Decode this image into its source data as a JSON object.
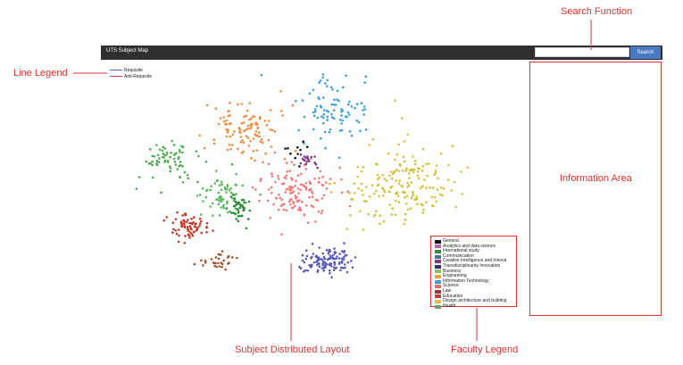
{
  "callouts": {
    "search": "Search Function",
    "line_legend": "Line Legend",
    "info_area": "Information Area",
    "layout": "Subject Distributed Layout",
    "faculty_legend": "Faculty Legend"
  },
  "navbar": {
    "title": "UTS Subject Map",
    "search_value": "",
    "search_button": "Search"
  },
  "line_legend": [
    {
      "label": "Requisite",
      "color": "#4a66b5"
    },
    {
      "label": "Anti-Requisite",
      "color": "#d63a3a"
    }
  ],
  "faculty_legend": [
    {
      "label": "General",
      "color": "#111111"
    },
    {
      "label": "Analytics and data science",
      "color": "#c05ab0"
    },
    {
      "label": "International study",
      "color": "#2e8b3a"
    },
    {
      "label": "Communication",
      "color": "#3b7a8c"
    },
    {
      "label": "Creative Intelligence and Innova",
      "color": "#7a3b8c"
    },
    {
      "label": "Transdisciplinarity Innovation",
      "color": "#3a2c6b"
    },
    {
      "label": "Business",
      "color": "#8fbf5a"
    },
    {
      "label": "Engineering",
      "color": "#e8a43a"
    },
    {
      "label": "Information Technology",
      "color": "#3a9fd8"
    },
    {
      "label": "Science",
      "color": "#e46a6a"
    },
    {
      "label": "Law",
      "color": "#9b3a2c"
    },
    {
      "label": "Education",
      "color": "#c23a3a"
    },
    {
      "label": "Design architecture and building",
      "color": "#d8c23a"
    },
    {
      "label": "Health",
      "color": "#5aa86a"
    }
  ],
  "clusters": [
    {
      "color": "#4dab4d",
      "n": 70
    },
    {
      "color": "#f08a3c",
      "n": 110
    },
    {
      "color": "#3a9fd8",
      "n": 90
    },
    {
      "color": "#5cb85c",
      "n": 70
    },
    {
      "color": "#d4c23c",
      "n": 180
    },
    {
      "color": "#f07878",
      "n": 130
    },
    {
      "color": "#c23a2c",
      "n": 70
    },
    {
      "color": "#5a5ab8",
      "n": 120
    },
    {
      "color": "#2e8b3a",
      "n": 40
    },
    {
      "color": "#a0522d",
      "n": 30
    },
    {
      "color": "#7a3b8c",
      "n": 18
    },
    {
      "color": "#111111",
      "n": 10
    }
  ]
}
